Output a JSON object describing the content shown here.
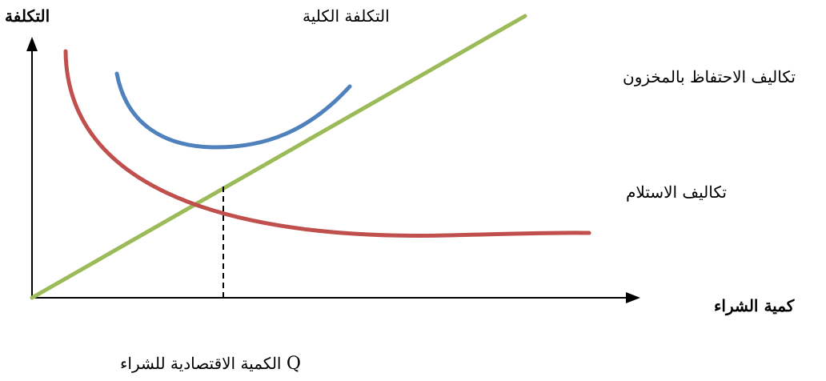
{
  "axes": {
    "y_label": "التكلفة",
    "x_label": "كمية الشراء"
  },
  "curves": {
    "total_cost": {
      "label": "التكلفة الكلية",
      "color": "#4f81bd"
    },
    "holding_cost": {
      "label": "تكاليف الاحتفاظ بالمخزون",
      "color": "#9bbb59"
    },
    "ordering_cost": {
      "label": "تكاليف الاستلام",
      "color": "#c0504d"
    }
  },
  "eoq": {
    "symbol": "Q",
    "label": "الكمية الاقتصادية للشراء"
  }
}
